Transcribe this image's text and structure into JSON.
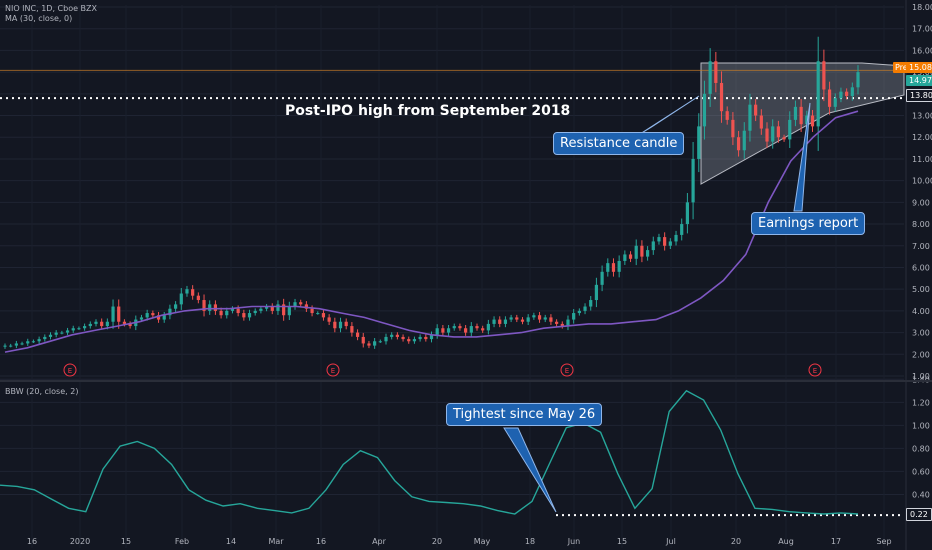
{
  "legend": {
    "symbol_line": "NIO INC, 1D, Cboe BZX",
    "ma_line": "MA (30, close, 0)",
    "bbw_line": "BBW (20, close, 2)"
  },
  "annotations": {
    "post_ipo": "Post-IPO high from September 2018",
    "resistance": "Resistance candle",
    "earnings": "Earnings report",
    "tightest": "Tightest since May 26"
  },
  "price_tags": {
    "pre_label": "Pre",
    "pre_value": "15.08",
    "last_value": "14.97",
    "level_value": "13.80",
    "bbw_value": "0.22"
  },
  "colors": {
    "background": "#131722",
    "up": "#26a69a",
    "down": "#ef5350",
    "ma": "#7e57c2",
    "bbw": "#26a69a",
    "callout_bg": "#1e62b0",
    "pre_tag": "#f57c00",
    "last_tag": "#26a69a"
  },
  "earnings_marker": "E",
  "chart_data": [
    {
      "type": "candlestick",
      "title": "NIO INC, 1D, Cboe BZX",
      "y_axis_ticks": [
        "1.00",
        "2.00",
        "3.00",
        "4.00",
        "5.00",
        "6.00",
        "7.00",
        "8.00",
        "9.00",
        "10.00",
        "11.00",
        "12.00",
        "13.00",
        "14.00",
        "15.00",
        "16.00",
        "17.00",
        "18.00"
      ],
      "ylim": [
        1,
        18
      ],
      "x_axis_ticks": [
        "16",
        "2020",
        "15",
        "Feb",
        "14",
        "Mar",
        "16",
        "Apr",
        "20",
        "May",
        "18",
        "Jun",
        "15",
        "Jul",
        "20",
        "Aug",
        "17",
        "Sep"
      ],
      "ma_label": "MA (30, close, 0)",
      "horizontal_levels": [
        13.8,
        15.08
      ],
      "close_approx": [
        2.4,
        2.4,
        2.5,
        2.5,
        2.6,
        2.6,
        2.7,
        2.8,
        2.9,
        3.0,
        3.0,
        3.1,
        3.2,
        3.2,
        3.3,
        3.4,
        3.5,
        3.3,
        3.5,
        4.2,
        3.5,
        3.4,
        3.3,
        3.6,
        3.7,
        3.9,
        3.8,
        3.6,
        3.8,
        4.1,
        4.3,
        4.8,
        5.0,
        4.7,
        4.5,
        4.0,
        4.3,
        4.0,
        3.8,
        4.0,
        4.1,
        3.9,
        3.7,
        3.9,
        4.0,
        4.1,
        4.2,
        4.0,
        4.3,
        3.8,
        4.2,
        4.4,
        4.3,
        4.1,
        3.9,
        3.9,
        3.7,
        3.5,
        3.2,
        3.5,
        3.3,
        3.0,
        2.8,
        2.5,
        2.4,
        2.6,
        2.6,
        2.8,
        2.9,
        2.8,
        2.7,
        2.6,
        2.7,
        2.8,
        2.7,
        2.9,
        3.2,
        3.0,
        3.2,
        3.3,
        3.2,
        3.0,
        3.3,
        3.2,
        3.1,
        3.4,
        3.6,
        3.4,
        3.6,
        3.7,
        3.6,
        3.5,
        3.7,
        3.8,
        3.6,
        3.7,
        3.5,
        3.4,
        3.3,
        3.6,
        3.9,
        4.0,
        4.2,
        4.5,
        5.2,
        5.8,
        6.2,
        5.8,
        6.3,
        6.6,
        6.4,
        7.0,
        6.5,
        6.8,
        7.2,
        7.4,
        7.0,
        7.2,
        7.5,
        8.0,
        9.0,
        11.0,
        12.5,
        14.0,
        15.5,
        14.5,
        13.2,
        12.8,
        12.0,
        11.4,
        12.3,
        13.5,
        13.0,
        12.4,
        11.8,
        12.5,
        12.0,
        11.9,
        12.8,
        13.4,
        12.6,
        13.0,
        12.5,
        15.5,
        14.2,
        13.4,
        13.8,
        14.1,
        13.9,
        14.3,
        15.0
      ],
      "ma30_approx": [
        2.1,
        2.3,
        2.6,
        2.9,
        3.1,
        3.3,
        3.5,
        3.8,
        4.0,
        4.1,
        4.1,
        4.2,
        4.2,
        4.2,
        4.1,
        3.9,
        3.7,
        3.4,
        3.1,
        2.9,
        2.8,
        2.8,
        2.9,
        3.0,
        3.2,
        3.3,
        3.4,
        3.4,
        3.5,
        3.6,
        4.0,
        4.6,
        5.4,
        6.6,
        9.0,
        10.9,
        12.0,
        12.9,
        13.2
      ]
    },
    {
      "type": "line",
      "title": "BBW (20, close, 2)",
      "y_axis_ticks": [
        "0.40",
        "0.60",
        "0.80",
        "1.00",
        "1.20",
        "1.40"
      ],
      "ylim": [
        0.1,
        1.42
      ],
      "last_value": 0.22,
      "values_approx": [
        0.48,
        0.47,
        0.44,
        0.36,
        0.28,
        0.25,
        0.62,
        0.82,
        0.86,
        0.8,
        0.66,
        0.44,
        0.35,
        0.3,
        0.32,
        0.28,
        0.26,
        0.24,
        0.28,
        0.44,
        0.66,
        0.78,
        0.72,
        0.52,
        0.38,
        0.34,
        0.33,
        0.32,
        0.3,
        0.26,
        0.23,
        0.34,
        0.66,
        0.98,
        1.02,
        0.94,
        0.58,
        0.28,
        0.45,
        1.12,
        1.3,
        1.22,
        0.96,
        0.58,
        0.28,
        0.27,
        0.25,
        0.24,
        0.23,
        0.24,
        0.23
      ]
    }
  ]
}
